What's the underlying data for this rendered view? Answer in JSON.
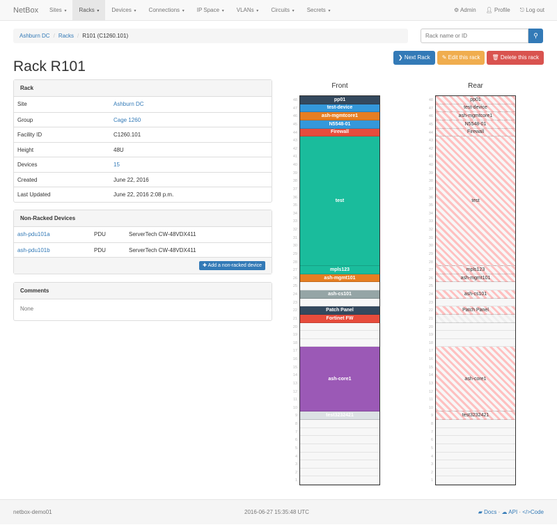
{
  "nav": {
    "brand": "NetBox",
    "items": [
      "Sites",
      "Racks",
      "Devices",
      "Connections",
      "IP Space",
      "VLANs",
      "Circuits",
      "Secrets"
    ],
    "active": "Racks",
    "admin": "Admin",
    "profile": "Profile",
    "logout": "Log out"
  },
  "breadcrumb": [
    "Ashburn DC",
    "Racks",
    "R101 (C1260.101)"
  ],
  "search": {
    "placeholder": "Rack name or ID"
  },
  "buttons": {
    "next": "Next Rack",
    "edit": "Edit this rack",
    "delete": "Delete this rack"
  },
  "title": "Rack R101",
  "rack_panel": {
    "heading": "Rack",
    "rows": [
      {
        "k": "Site",
        "v": "Ashburn DC",
        "link": true
      },
      {
        "k": "Group",
        "v": "Cage 1260",
        "link": true
      },
      {
        "k": "Facility ID",
        "v": "C1260.101"
      },
      {
        "k": "Height",
        "v": "48U"
      },
      {
        "k": "Devices",
        "v": "15",
        "link": true
      },
      {
        "k": "Created",
        "v": "June 22, 2016"
      },
      {
        "k": "Last Updated",
        "v": "June 22, 2016 2:08 p.m."
      }
    ]
  },
  "nonracked": {
    "heading": "Non-Racked Devices",
    "rows": [
      {
        "name": "ash-pdu101a",
        "role": "PDU",
        "type": "ServerTech CW-48VDX411"
      },
      {
        "name": "ash-pdu101b",
        "role": "PDU",
        "type": "ServerTech CW-48VDX411"
      }
    ],
    "add": "Add a non-racked device"
  },
  "comments": {
    "heading": "Comments",
    "body": "None"
  },
  "elevation": {
    "height": 48,
    "front_label": "Front",
    "rear_label": "Rear",
    "front": [
      {
        "name": "pp01",
        "u": 48,
        "h": 1,
        "color": "#34495e"
      },
      {
        "name": "test-device",
        "u": 47,
        "h": 1,
        "color": "#3498db"
      },
      {
        "name": "ash-mgmtcore1",
        "u": 46,
        "h": 1,
        "color": "#e67e22"
      },
      {
        "name": "N5548-01",
        "u": 45,
        "h": 1,
        "color": "#3498db"
      },
      {
        "name": "Firewall",
        "u": 44,
        "h": 1,
        "color": "#e74c3c"
      },
      {
        "name": "test",
        "u": 28,
        "h": 16,
        "color": "#1abc9c"
      },
      {
        "name": "mpls123",
        "u": 27,
        "h": 1,
        "color": "#1abc9c"
      },
      {
        "name": "ash-mgmt101",
        "u": 26,
        "h": 1,
        "color": "#e67e22"
      },
      {
        "name": "ash-cs101",
        "u": 24,
        "h": 1,
        "color": "#95a5a6"
      },
      {
        "name": "Patch Panel",
        "u": 22,
        "h": 1,
        "color": "#34495e"
      },
      {
        "name": "Fortinet FW",
        "u": 21,
        "h": 1,
        "color": "#e74c3c"
      },
      {
        "name": "ash-core1",
        "u": 10,
        "h": 8,
        "color": "#9b59b6"
      },
      {
        "name": "test3232421",
        "u": 9,
        "h": 1,
        "color": "#dce1e4"
      }
    ],
    "rear": [
      {
        "name": "pp01",
        "u": 48,
        "h": 1
      },
      {
        "name": "test-device",
        "u": 47,
        "h": 1
      },
      {
        "name": "ash-mgmtcore1",
        "u": 46,
        "h": 1
      },
      {
        "name": "N5548-01",
        "u": 45,
        "h": 1
      },
      {
        "name": "Firewall",
        "u": 44,
        "h": 1
      },
      {
        "name": "test",
        "u": 28,
        "h": 16
      },
      {
        "name": "mpls123",
        "u": 27,
        "h": 1
      },
      {
        "name": "ash-mgmt101",
        "u": 26,
        "h": 1
      },
      {
        "name": "ash-cs101",
        "u": 24,
        "h": 1
      },
      {
        "name": "Patch Panel",
        "u": 22,
        "h": 1
      },
      {
        "name": "",
        "u": 21,
        "h": 1,
        "blocked": true
      },
      {
        "name": "ash-core1",
        "u": 10,
        "h": 8
      },
      {
        "name": "test3232421",
        "u": 9,
        "h": 1
      }
    ]
  },
  "footer": {
    "host": "netbox-demo01",
    "time": "2016-06-27 15:35:48 UTC",
    "docs": "Docs",
    "api": "API",
    "code": "Code"
  }
}
